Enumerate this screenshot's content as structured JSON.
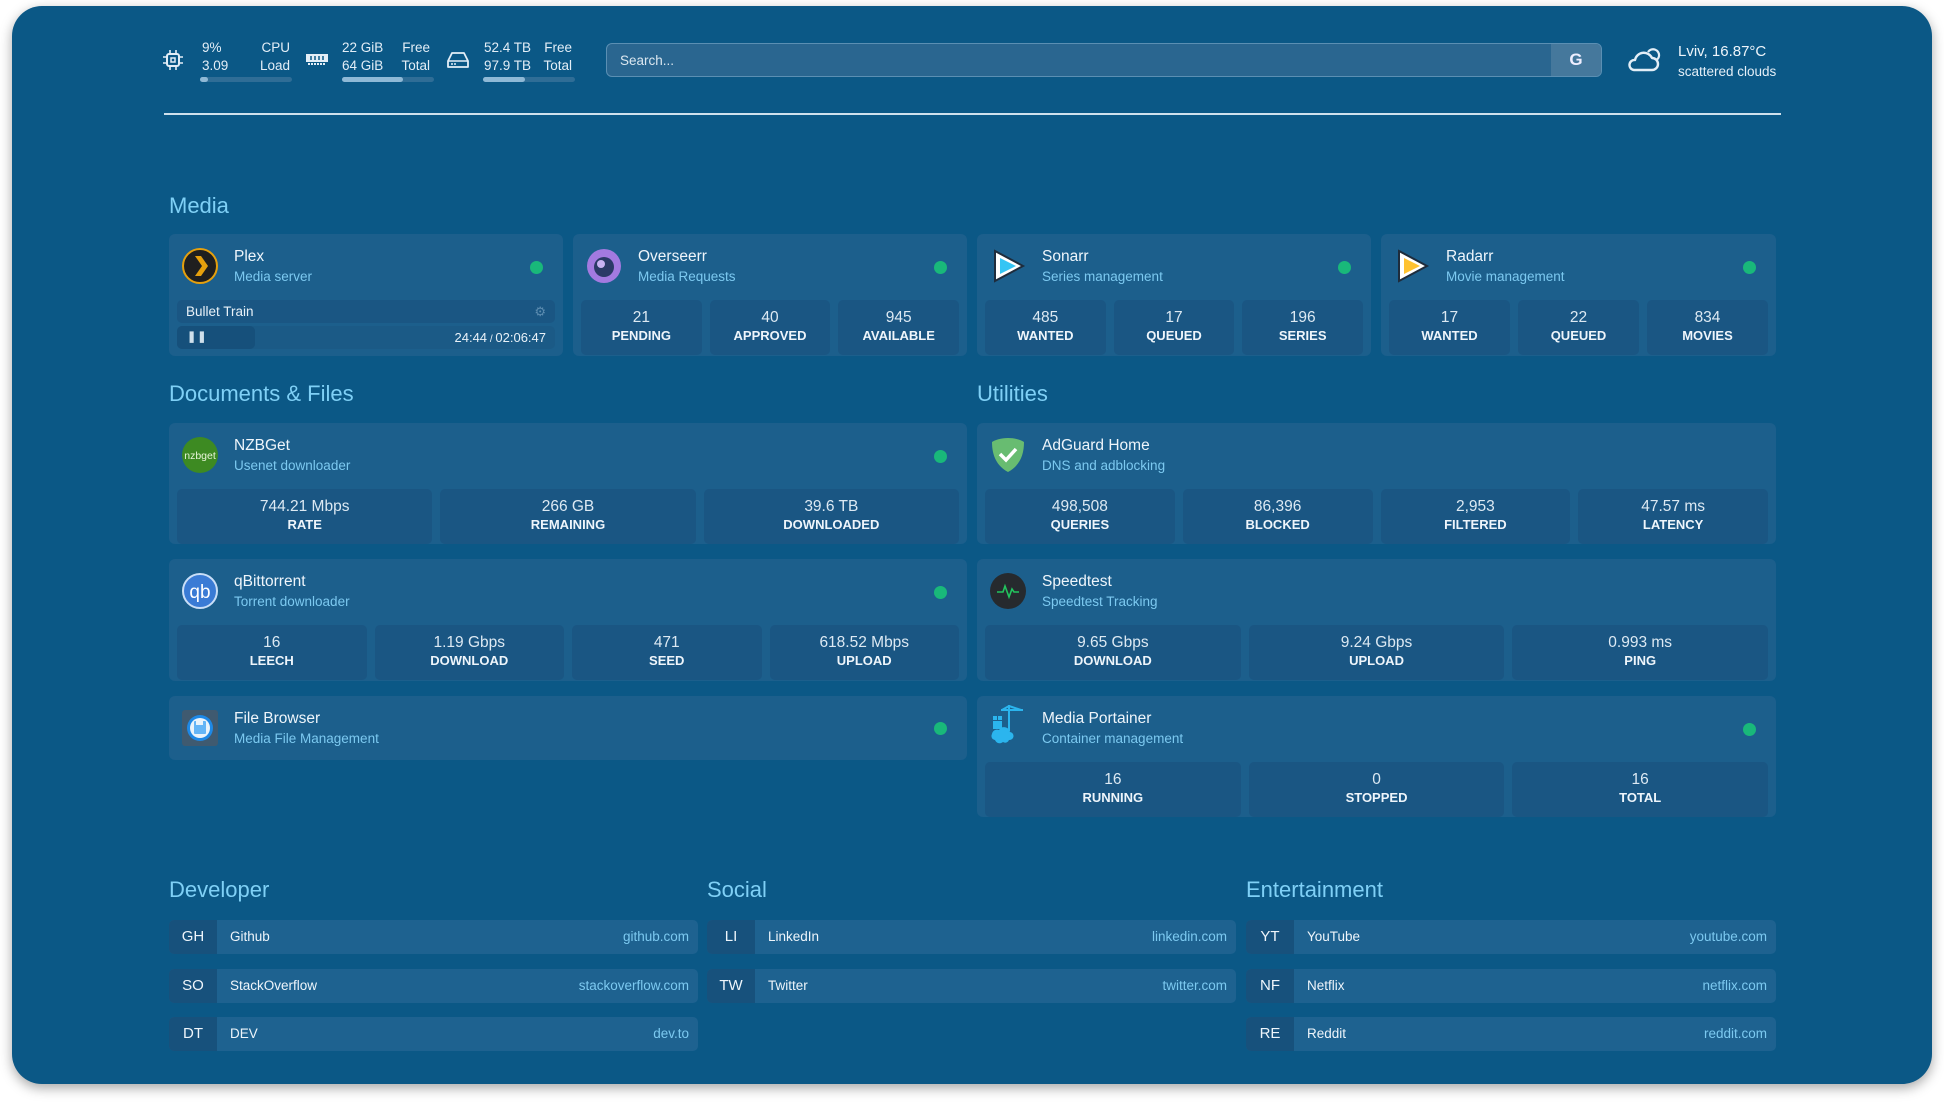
{
  "widgets": {
    "cpu": {
      "icon": "cpu-icon",
      "usage": "9%",
      "usage_label": "CPU",
      "load": "3.09",
      "load_label": "Load",
      "bar_percent": 9
    },
    "memory": {
      "icon": "memory-icon",
      "free": "22 GiB",
      "free_label": "Free",
      "total": "64 GiB",
      "total_label": "Total",
      "bar_percent": 66
    },
    "disk": {
      "icon": "hard-drive-icon",
      "free": "52.4 TB",
      "free_label": "Free",
      "total": "97.9 TB",
      "total_label": "Total",
      "bar_percent": 46
    },
    "search": {
      "placeholder": "Search...",
      "button_label": "G"
    },
    "weather": {
      "icon": "cloud-sun-icon",
      "location_temp": "Lviv, 16.87°C",
      "condition": "scattered clouds"
    }
  },
  "colors": {
    "background": "#0b5886",
    "card": "#1c5f8c",
    "accent": "#7fd0f6",
    "status_ok": "#19b87a"
  },
  "sections": {
    "media": "Media",
    "documents": "Documents & Files",
    "utilities": "Utilities"
  },
  "services": [
    {
      "id": "plex",
      "name": "Plex",
      "desc": "Media server",
      "icon": "plex-icon",
      "status": "online",
      "now_playing": {
        "title": "Bullet Train",
        "progress": "24:44",
        "duration": "02:06:47",
        "state": "paused"
      }
    },
    {
      "id": "overseerr",
      "name": "Overseerr",
      "desc": "Media Requests",
      "icon": "overseerr-icon",
      "status": "online",
      "stats": [
        {
          "value": "21",
          "label": "PENDING"
        },
        {
          "value": "40",
          "label": "APPROVED"
        },
        {
          "value": "945",
          "label": "AVAILABLE"
        }
      ]
    },
    {
      "id": "sonarr",
      "name": "Sonarr",
      "desc": "Series management",
      "icon": "sonarr-icon",
      "status": "online",
      "stats": [
        {
          "value": "485",
          "label": "WANTED"
        },
        {
          "value": "17",
          "label": "QUEUED"
        },
        {
          "value": "196",
          "label": "SERIES"
        }
      ]
    },
    {
      "id": "radarr",
      "name": "Radarr",
      "desc": "Movie management",
      "icon": "radarr-icon",
      "status": "online",
      "stats": [
        {
          "value": "17",
          "label": "WANTED"
        },
        {
          "value": "22",
          "label": "QUEUED"
        },
        {
          "value": "834",
          "label": "MOVIES"
        }
      ]
    },
    {
      "id": "nzbget",
      "name": "NZBGet",
      "desc": "Usenet downloader",
      "icon": "nzbget-icon",
      "icon_text": "nzbget",
      "status": "online",
      "stats": [
        {
          "value": "744.21 Mbps",
          "label": "RATE"
        },
        {
          "value": "266 GB",
          "label": "REMAINING"
        },
        {
          "value": "39.6 TB",
          "label": "DOWNLOADED"
        }
      ]
    },
    {
      "id": "qbittorrent",
      "name": "qBittorrent",
      "desc": "Torrent downloader",
      "icon": "qbittorrent-icon",
      "icon_text": "qb",
      "status": "online",
      "stats": [
        {
          "value": "16",
          "label": "LEECH"
        },
        {
          "value": "1.19 Gbps",
          "label": "DOWNLOAD"
        },
        {
          "value": "471",
          "label": "SEED"
        },
        {
          "value": "618.52 Mbps",
          "label": "UPLOAD"
        }
      ]
    },
    {
      "id": "filebrowser",
      "name": "File Browser",
      "desc": "Media File Management",
      "icon": "file-browser-icon",
      "status": "online"
    },
    {
      "id": "adguard",
      "name": "AdGuard Home",
      "desc": "DNS and adblocking",
      "icon": "adguard-shield-icon",
      "stats": [
        {
          "value": "498,508",
          "label": "QUERIES"
        },
        {
          "value": "86,396",
          "label": "BLOCKED"
        },
        {
          "value": "2,953",
          "label": "FILTERED"
        },
        {
          "value": "47.57 ms",
          "label": "LATENCY"
        }
      ]
    },
    {
      "id": "speedtest",
      "name": "Speedtest",
      "desc": "Speedtest Tracking",
      "icon": "speedtest-pulse-icon",
      "stats": [
        {
          "value": "9.65 Gbps",
          "label": "DOWNLOAD"
        },
        {
          "value": "9.24 Gbps",
          "label": "UPLOAD"
        },
        {
          "value": "0.993 ms",
          "label": "PING"
        }
      ]
    },
    {
      "id": "portainer",
      "name": "Media Portainer",
      "desc": "Container management",
      "icon": "portainer-icon",
      "status": "online",
      "stats": [
        {
          "value": "16",
          "label": "RUNNING"
        },
        {
          "value": "0",
          "label": "STOPPED"
        },
        {
          "value": "16",
          "label": "TOTAL"
        }
      ]
    }
  ],
  "bookmarks": [
    {
      "group": "Developer",
      "items": [
        {
          "abbr": "GH",
          "name": "Github",
          "url": "github.com"
        },
        {
          "abbr": "SO",
          "name": "StackOverflow",
          "url": "stackoverflow.com"
        },
        {
          "abbr": "DT",
          "name": "DEV",
          "url": "dev.to"
        }
      ]
    },
    {
      "group": "Social",
      "items": [
        {
          "abbr": "LI",
          "name": "LinkedIn",
          "url": "linkedin.com"
        },
        {
          "abbr": "TW",
          "name": "Twitter",
          "url": "twitter.com"
        }
      ]
    },
    {
      "group": "Entertainment",
      "items": [
        {
          "abbr": "YT",
          "name": "YouTube",
          "url": "youtube.com"
        },
        {
          "abbr": "NF",
          "name": "Netflix",
          "url": "netflix.com"
        },
        {
          "abbr": "RE",
          "name": "Reddit",
          "url": "reddit.com"
        }
      ]
    }
  ]
}
